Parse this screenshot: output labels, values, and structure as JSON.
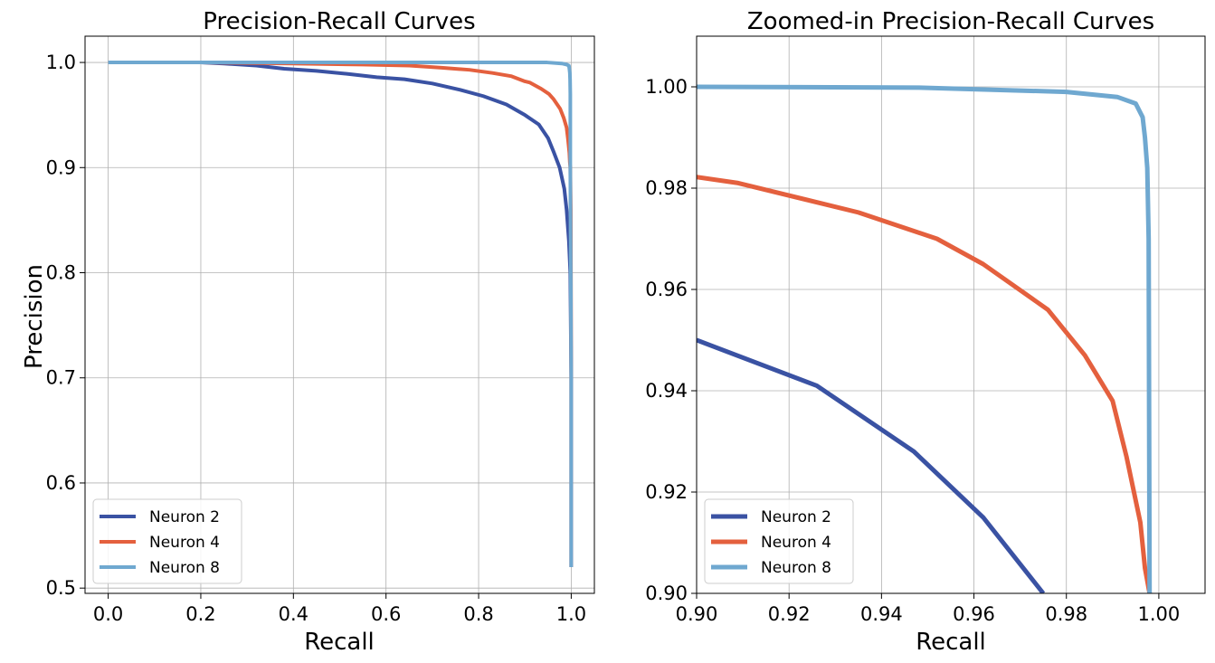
{
  "chart_data": [
    {
      "type": "line",
      "title": "Precision-Recall Curves",
      "xlabel": "Recall",
      "ylabel": "Precision",
      "xlim": [
        -0.05,
        1.05
      ],
      "ylim": [
        0.495,
        1.025
      ],
      "grid": true,
      "legend": "lower-left",
      "xticks": [
        0.0,
        0.2,
        0.4,
        0.6,
        0.8,
        1.0
      ],
      "xtick_labels": [
        "0.0",
        "0.2",
        "0.4",
        "0.6",
        "0.8",
        "1.0"
      ],
      "yticks": [
        0.5,
        0.6,
        0.7,
        0.8,
        0.9,
        1.0
      ],
      "ytick_labels": [
        "0.5",
        "0.6",
        "0.7",
        "0.8",
        "0.9",
        "1.0"
      ],
      "series": [
        {
          "name": "Neuron 2",
          "color": "#3a52a3",
          "x": [
            0.0,
            0.1,
            0.2,
            0.25,
            0.32,
            0.38,
            0.45,
            0.52,
            0.58,
            0.64,
            0.7,
            0.76,
            0.81,
            0.86,
            0.9,
            0.93,
            0.95,
            0.962,
            0.975,
            0.985,
            0.99,
            0.995,
            0.998,
            1.0,
            1.0
          ],
          "y": [
            1.0,
            1.0,
            1.0,
            0.999,
            0.997,
            0.994,
            0.992,
            0.989,
            0.986,
            0.984,
            0.98,
            0.974,
            0.968,
            0.96,
            0.95,
            0.941,
            0.928,
            0.915,
            0.9,
            0.88,
            0.86,
            0.83,
            0.8,
            0.7,
            0.52
          ]
        },
        {
          "name": "Neuron 4",
          "color": "#e4603e",
          "x": [
            0.0,
            0.2,
            0.4,
            0.55,
            0.65,
            0.72,
            0.78,
            0.83,
            0.87,
            0.9,
            0.91,
            0.935,
            0.952,
            0.962,
            0.976,
            0.984,
            0.99,
            0.993,
            0.996,
            0.997,
            0.998,
            0.999,
            1.0,
            1.0
          ],
          "y": [
            1.0,
            1.0,
            0.999,
            0.998,
            0.997,
            0.995,
            0.993,
            0.99,
            0.987,
            0.982,
            0.981,
            0.975,
            0.97,
            0.965,
            0.956,
            0.947,
            0.938,
            0.927,
            0.914,
            0.905,
            0.9,
            0.86,
            0.7,
            0.52
          ]
        },
        {
          "name": "Neuron 8",
          "color": "#6fa8d0",
          "x": [
            0.0,
            0.5,
            0.9,
            0.948,
            0.98,
            0.99,
            0.995,
            0.996,
            0.997,
            0.9975,
            0.998,
            0.998,
            0.999,
            1.0,
            1.0
          ],
          "y": [
            1.0,
            1.0,
            1.0,
            1.0,
            0.999,
            0.998,
            0.997,
            0.994,
            0.99,
            0.984,
            0.97,
            0.9,
            0.8,
            0.7,
            0.52
          ]
        }
      ]
    },
    {
      "type": "line",
      "title": "Zoomed-in Precision-Recall Curves",
      "xlabel": "Recall",
      "ylabel": "",
      "xlim": [
        0.9,
        1.01
      ],
      "ylim": [
        0.9,
        1.01
      ],
      "grid": true,
      "legend": "lower-left",
      "xticks": [
        0.9,
        0.92,
        0.94,
        0.96,
        0.98,
        1.0
      ],
      "xtick_labels": [
        "0.90",
        "0.92",
        "0.94",
        "0.96",
        "0.98",
        "1.00"
      ],
      "yticks": [
        0.9,
        0.92,
        0.94,
        0.96,
        0.98,
        1.0
      ],
      "ytick_labels": [
        "0.90",
        "0.92",
        "0.94",
        "0.96",
        "0.98",
        "1.00"
      ],
      "series": [
        {
          "name": "Neuron 2",
          "color": "#3a52a3",
          "x": [
            0.9,
            0.926,
            0.947,
            0.962,
            0.975
          ],
          "y": [
            0.95,
            0.941,
            0.928,
            0.915,
            0.9
          ]
        },
        {
          "name": "Neuron 4",
          "color": "#e4603e",
          "x": [
            0.9,
            0.909,
            0.935,
            0.952,
            0.962,
            0.976,
            0.984,
            0.99,
            0.993,
            0.996,
            0.997,
            0.998
          ],
          "y": [
            0.9822,
            0.981,
            0.9752,
            0.97,
            0.965,
            0.956,
            0.947,
            0.938,
            0.927,
            0.914,
            0.905,
            0.9
          ]
        },
        {
          "name": "Neuron 8",
          "color": "#6fa8d0",
          "x": [
            0.9,
            0.948,
            0.98,
            0.991,
            0.995,
            0.9965,
            0.997,
            0.9975,
            0.9978,
            0.998
          ],
          "y": [
            1.0,
            0.99985,
            0.999,
            0.998,
            0.9967,
            0.994,
            0.99,
            0.984,
            0.97,
            0.9
          ]
        }
      ]
    }
  ]
}
